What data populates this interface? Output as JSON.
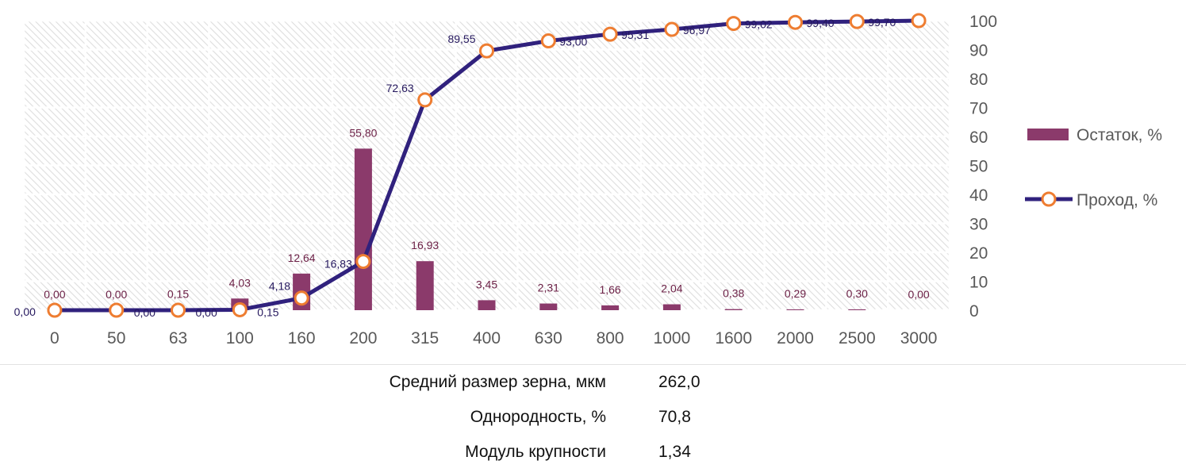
{
  "chart_data": {
    "type": "bar",
    "categories": [
      "0",
      "50",
      "63",
      "100",
      "160",
      "200",
      "315",
      "400",
      "630",
      "800",
      "1000",
      "1600",
      "2000",
      "2500",
      "3000"
    ],
    "series": [
      {
        "name": "Остаток, %",
        "type": "bar",
        "values": [
          0.0,
          0.0,
          0.15,
          4.03,
          12.64,
          55.8,
          16.93,
          3.45,
          2.31,
          1.66,
          2.04,
          0.38,
          0.29,
          0.3,
          0.0
        ],
        "labels": [
          "0,00",
          "0,00",
          "0,15",
          "4,03",
          "12,64",
          "55,80",
          "16,93",
          "3,45",
          "2,31",
          "1,66",
          "2,04",
          "0,38",
          "0,29",
          "0,30",
          "0,00"
        ]
      },
      {
        "name": "Проход, %",
        "type": "line",
        "values": [
          0.0,
          0.0,
          0.0,
          0.15,
          4.18,
          16.83,
          72.63,
          89.55,
          93.0,
          95.31,
          96.97,
          99.02,
          99.4,
          99.7,
          100.0
        ],
        "labels": [
          "0,00",
          "0,00",
          "0,00",
          "0,15",
          "4,18",
          "16,83",
          "72,63",
          "89,55",
          "93,00",
          "95,31",
          "96,97",
          "99,02",
          "99,40",
          "99,70",
          ""
        ]
      }
    ],
    "y_ticks": [
      "0",
      "10",
      "20",
      "30",
      "40",
      "50",
      "60",
      "70",
      "80",
      "90",
      "100"
    ],
    "ylim": [
      0,
      100
    ],
    "y_axis_side": "right",
    "grid": true,
    "legend": "right",
    "colors": {
      "bar": "#8b3a6b",
      "line": "#30217d",
      "marker_stroke": "#ee7d31",
      "bar_label": "#6b1f45",
      "line_label": "#25185e",
      "tick": "#595959"
    }
  },
  "stats": [
    {
      "label": "Средний размер зерна, мкм",
      "value": "262,0"
    },
    {
      "label": "Однородность, %",
      "value": "70,8"
    },
    {
      "label": "Модуль крупности",
      "value": "1,34"
    }
  ]
}
